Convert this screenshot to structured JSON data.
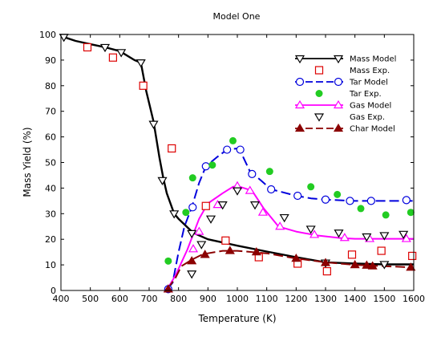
{
  "chart_data": {
    "type": "line",
    "title": "Model One",
    "xlabel": "Temperature (K)",
    "ylabel": "Mass  Yield (%)",
    "xlim": [
      400,
      1600
    ],
    "ylim": [
      0,
      100
    ],
    "xticks": [
      400,
      500,
      600,
      700,
      800,
      900,
      1000,
      1100,
      1200,
      1300,
      1400,
      1500,
      1600
    ],
    "yticks": [
      0,
      10,
      20,
      30,
      40,
      50,
      60,
      70,
      80,
      90,
      100
    ],
    "grid": false,
    "legend_position": "top-right",
    "series": [
      {
        "name": "Mass Model",
        "style": "solid",
        "color": "#000000",
        "marker": "triangle-down-open",
        "line": [
          [
            410,
            99
          ],
          [
            450,
            97.5
          ],
          [
            500,
            96.2
          ],
          [
            550,
            95
          ],
          [
            600,
            93.5
          ],
          [
            650,
            90
          ],
          [
            672,
            89
          ],
          [
            690,
            78
          ],
          [
            715,
            66
          ],
          [
            735,
            52
          ],
          [
            748,
            44
          ],
          [
            760,
            38
          ],
          [
            785,
            30
          ],
          [
            800,
            28
          ],
          [
            850,
            22.5
          ],
          [
            900,
            20
          ],
          [
            1000,
            17.5
          ],
          [
            1100,
            15.2
          ],
          [
            1200,
            13
          ],
          [
            1300,
            11
          ],
          [
            1400,
            10.5
          ],
          [
            1500,
            10.2
          ],
          [
            1600,
            10.2
          ]
        ],
        "markers": [
          [
            410,
            99
          ],
          [
            550,
            95
          ],
          [
            605,
            93
          ],
          [
            672,
            89
          ],
          [
            715,
            65
          ],
          [
            745,
            43
          ],
          [
            785,
            30
          ],
          [
            845,
            22.3
          ],
          [
            1300,
            10.8
          ],
          [
            1500,
            10.2
          ]
        ]
      },
      {
        "name": "Mass Exp.",
        "style": "none",
        "color": "#dd0000",
        "marker": "square-open",
        "points": [
          [
            490,
            95
          ],
          [
            577,
            91
          ],
          [
            680,
            80
          ],
          [
            777,
            55.5
          ],
          [
            893,
            33
          ],
          [
            960,
            19.5
          ],
          [
            1073,
            13
          ],
          [
            1205,
            10.5
          ],
          [
            1305,
            7.5
          ],
          [
            1390,
            14
          ],
          [
            1490,
            15.5
          ],
          [
            1595,
            13.5
          ]
        ]
      },
      {
        "name": "Tar Model",
        "style": "dashed",
        "color": "#0000dd",
        "marker": "circle-open",
        "line": [
          [
            762,
            0.5
          ],
          [
            780,
            3
          ],
          [
            800,
            15
          ],
          [
            820,
            25
          ],
          [
            845,
            32.5
          ],
          [
            870,
            42
          ],
          [
            893,
            48.5
          ],
          [
            930,
            52
          ],
          [
            965,
            55
          ],
          [
            1000,
            55.5
          ],
          [
            1010,
            54.5
          ],
          [
            1045,
            46
          ],
          [
            1060,
            45
          ],
          [
            1080,
            43
          ],
          [
            1115,
            39.5
          ],
          [
            1150,
            38.5
          ],
          [
            1200,
            37
          ],
          [
            1250,
            36
          ],
          [
            1300,
            35.5
          ],
          [
            1400,
            35
          ],
          [
            1500,
            35
          ],
          [
            1600,
            35
          ]
        ],
        "markers": [
          [
            765,
            0.5
          ],
          [
            848,
            32.5
          ],
          [
            893,
            48.5
          ],
          [
            965,
            55
          ],
          [
            1010,
            55
          ],
          [
            1050,
            45.5
          ],
          [
            1115,
            39.5
          ],
          [
            1205,
            37
          ],
          [
            1300,
            35.5
          ],
          [
            1383,
            35
          ],
          [
            1455,
            35
          ],
          [
            1575,
            35.3
          ]
        ]
      },
      {
        "name": "Tar Exp.",
        "style": "none",
        "color": "#22cc22",
        "marker": "circle-filled",
        "points": [
          [
            765,
            11.5
          ],
          [
            825,
            30.5
          ],
          [
            848,
            44
          ],
          [
            915,
            49
          ],
          [
            985,
            58.5
          ],
          [
            1110,
            46.5
          ],
          [
            1250,
            40.5
          ],
          [
            1340,
            37.5
          ],
          [
            1420,
            32
          ],
          [
            1505,
            29.5
          ],
          [
            1590,
            30.5
          ]
        ]
      },
      {
        "name": "Gas Model",
        "style": "solid",
        "color": "#ff00ff",
        "marker": "triangle-up-open",
        "line": [
          [
            762,
            0.5
          ],
          [
            790,
            6
          ],
          [
            800,
            8.5
          ],
          [
            830,
            16
          ],
          [
            870,
            28
          ],
          [
            900,
            34
          ],
          [
            950,
            38
          ],
          [
            985,
            40.5
          ],
          [
            1000,
            40.8
          ],
          [
            1050,
            39
          ],
          [
            1090,
            32
          ],
          [
            1140,
            25
          ],
          [
            1200,
            23
          ],
          [
            1270,
            21.5
          ],
          [
            1350,
            20.5
          ],
          [
            1400,
            20.2
          ],
          [
            1600,
            20.2
          ]
        ],
        "markers": [
          [
            765,
            0.5
          ],
          [
            850,
            16.2
          ],
          [
            870,
            23
          ],
          [
            933,
            33.5
          ],
          [
            1000,
            40.8
          ],
          [
            1043,
            39
          ],
          [
            1087,
            30.5
          ],
          [
            1145,
            25
          ],
          [
            1262,
            21.8
          ],
          [
            1365,
            20.6
          ],
          [
            1450,
            20.2
          ],
          [
            1575,
            20.2
          ]
        ]
      },
      {
        "name": "Gas Exp.",
        "style": "none",
        "color": "#000000",
        "marker": "triangle-down-open",
        "points": [
          [
            845,
            6.5
          ],
          [
            878,
            18
          ],
          [
            910,
            28
          ],
          [
            950,
            33.5
          ],
          [
            1000,
            39
          ],
          [
            1060,
            33.5
          ],
          [
            1160,
            28.5
          ],
          [
            1250,
            24
          ],
          [
            1345,
            22.5
          ],
          [
            1440,
            21
          ],
          [
            1500,
            21.5
          ],
          [
            1565,
            22
          ]
        ]
      },
      {
        "name": "Char Model",
        "style": "dashed",
        "color": "#8b0000",
        "marker": "triangle-up-filled",
        "line": [
          [
            762,
            0.5
          ],
          [
            790,
            5
          ],
          [
            810,
            9.5
          ],
          [
            845,
            12
          ],
          [
            880,
            14
          ],
          [
            900,
            14.5
          ],
          [
            950,
            15.5
          ],
          [
            1000,
            15.5
          ],
          [
            1100,
            14.5
          ],
          [
            1200,
            12.5
          ],
          [
            1300,
            11
          ],
          [
            1400,
            10
          ],
          [
            1500,
            9.5
          ],
          [
            1600,
            9
          ]
        ],
        "markers": [
          [
            765,
            0.5
          ],
          [
            845,
            11.5
          ],
          [
            890,
            14
          ],
          [
            975,
            15.5
          ],
          [
            1065,
            15
          ],
          [
            1200,
            12.5
          ],
          [
            1300,
            10.8
          ],
          [
            1400,
            10
          ],
          [
            1440,
            9.8
          ],
          [
            1460,
            9.5
          ],
          [
            1590,
            9
          ]
        ]
      }
    ]
  }
}
